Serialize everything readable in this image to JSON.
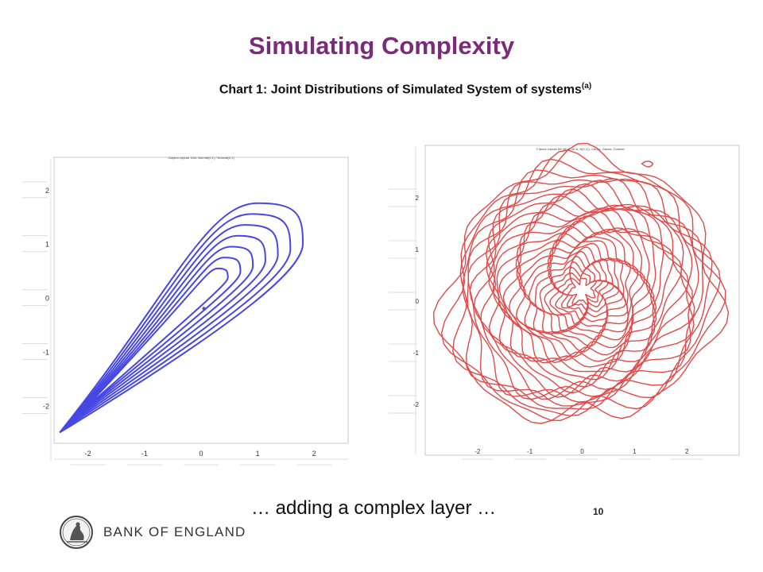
{
  "slide": {
    "title": "Simulating Complexity",
    "chart_heading": "Chart 1: Joint Distributions of Simulated System of systems",
    "chart_heading_note": "(a)",
    "caption": "… adding a complex layer …",
    "page_number": "10",
    "logo_text": "BANK OF ENGLAND"
  },
  "colors": {
    "title": "#7a2c7a",
    "left_contours": "#4747e6",
    "right_contours": "#e04a4a"
  },
  "chart_data": [
    {
      "type": "contour",
      "title": "Clayton copula. Dist: Normal(0,1) / Normal(0,1)",
      "x_ticks": [
        "-2",
        "-1",
        "0",
        "1",
        "2"
      ],
      "y_ticks": [
        "2",
        "1",
        "0",
        "-1",
        "-2"
      ],
      "xlim": [
        -2.6,
        2.6
      ],
      "ylim": [
        -2.7,
        2.6
      ],
      "series": [
        {
          "levels": 7,
          "shape": "teardrop",
          "tail": [
            -2.5,
            -2.5
          ],
          "outer_top": [
            1.0,
            1.75
          ],
          "outer_right": [
            1.8,
            1.0
          ],
          "color": "#4747e6"
        }
      ]
    },
    {
      "type": "contour",
      "title": "3 factor copula tW (df=5, df=5, N(0,1)). Gauss, Gauss, Gumbel",
      "x_ticks": [
        "-2",
        "-1",
        "0",
        "1",
        "2"
      ],
      "y_ticks": [
        "2",
        "1",
        "0",
        "-1",
        "-2"
      ],
      "xlim": [
        -3,
        3
      ],
      "ylim": [
        -3,
        3
      ],
      "series": [
        {
          "levels": 28,
          "shape": "irregular-ring",
          "center": [
            0,
            0
          ],
          "color": "#e04a4a"
        }
      ]
    }
  ]
}
